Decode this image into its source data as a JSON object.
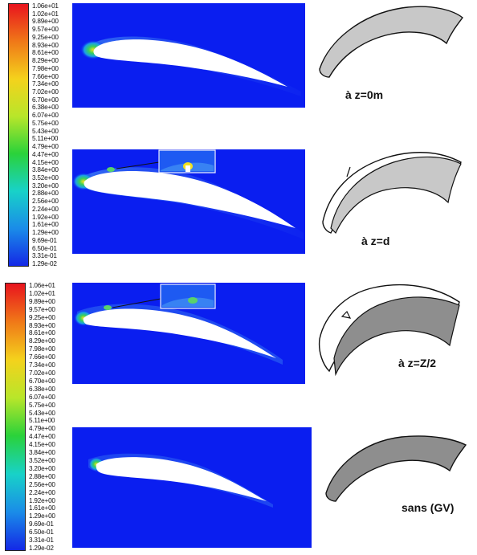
{
  "legend_ticks": [
    "1.06e+01",
    "1.02e+01",
    "9.89e+00",
    "9.57e+00",
    "9.25e+00",
    "8.93e+00",
    "8.61e+00",
    "8.29e+00",
    "7.98e+00",
    "7.66e+00",
    "7.34e+00",
    "7.02e+00",
    "6.70e+00",
    "6.38e+00",
    "6.07e+00",
    "5.75e+00",
    "5.43e+00",
    "5.11e+00",
    "4.79e+00",
    "4.47e+00",
    "4.15e+00",
    "3.84e+00",
    "3.52e+00",
    "3.20e+00",
    "2.88e+00",
    "2.56e+00",
    "2.24e+00",
    "1.92e+00",
    "1.61e+00",
    "1.29e+00",
    "9.69e-01",
    "6.50e-01",
    "3.31e-01",
    "1.29e-02"
  ],
  "colors": {
    "field_background": "#0a1ef0",
    "colorbar_stops": [
      "#e8141e",
      "#f07818",
      "#f4d21c",
      "#b8e62a",
      "#2ad23a",
      "#18d2c8",
      "#1a8ce8",
      "#1428e6"
    ],
    "blade_light": "#c8c8c8",
    "blade_dark": "#8e8e8e"
  },
  "panels": [
    {
      "caption": "à z=0m",
      "blade_shade": "light",
      "inset": false
    },
    {
      "caption": "à z=d",
      "blade_shade": "light",
      "inset": true
    },
    {
      "caption": "à z=Z/2",
      "blade_shade": "dark",
      "inset": true
    },
    {
      "caption": "sans (GV)",
      "blade_shade": "dark",
      "inset": false
    }
  ]
}
